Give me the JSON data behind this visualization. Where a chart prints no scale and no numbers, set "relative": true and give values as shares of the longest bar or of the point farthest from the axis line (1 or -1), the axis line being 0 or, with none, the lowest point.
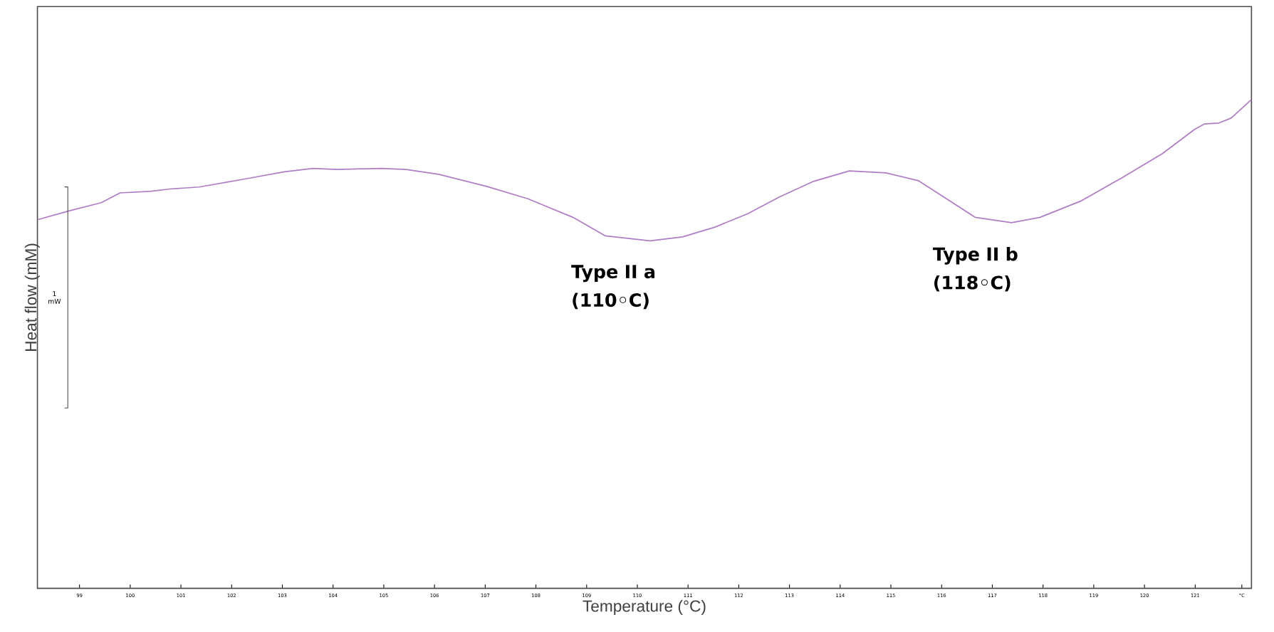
{
  "chart_data": {
    "type": "line",
    "relative": true,
    "xlabel": "Temperature (°C)",
    "ylabel": "Heat flow (mM)",
    "xlim": [
      98.17,
      122.11
    ],
    "xticks": [
      99,
      100,
      101,
      102,
      103,
      104,
      105,
      106,
      107,
      108,
      109,
      110,
      111,
      112,
      113,
      114,
      115,
      116,
      117,
      118,
      119,
      120,
      121,
      {
        "value": 121.92,
        "label": "°C"
      }
    ],
    "x": [
      98.17,
      98.79,
      99.43,
      99.8,
      100.39,
      100.79,
      101.36,
      102.24,
      103.04,
      103.6,
      104.08,
      104.96,
      105.44,
      106.08,
      107.04,
      107.84,
      108.73,
      109.37,
      110.25,
      110.89,
      111.53,
      112.17,
      112.81,
      113.46,
      114.18,
      114.9,
      115.54,
      116.02,
      116.66,
      117.38,
      117.94,
      118.74,
      119.54,
      120.35,
      120.99,
      121.18,
      121.47,
      121.71,
      122.11
    ],
    "series": [
      {
        "color": "#b07cc6",
        "values": [
          0.754,
          0.772,
          0.789,
          0.809,
          0.812,
          0.817,
          0.821,
          0.837,
          0.852,
          0.859,
          0.857,
          0.859,
          0.857,
          0.847,
          0.822,
          0.797,
          0.759,
          0.721,
          0.711,
          0.719,
          0.739,
          0.766,
          0.801,
          0.832,
          0.854,
          0.85,
          0.834,
          0.802,
          0.759,
          0.748,
          0.759,
          0.792,
          0.839,
          0.889,
          0.939,
          0.95,
          0.952,
          0.962,
          1.0
        ]
      }
    ],
    "annotations": [
      {
        "text": "Type II a (110◦C)",
        "x": 110.25,
        "y": 0.711
      },
      {
        "text": "Type II b (118◦C)",
        "x": 117.38,
        "y": 0.748
      },
      "1 mW"
    ],
    "grid": false,
    "marker": "none",
    "line_style": "solid"
  }
}
